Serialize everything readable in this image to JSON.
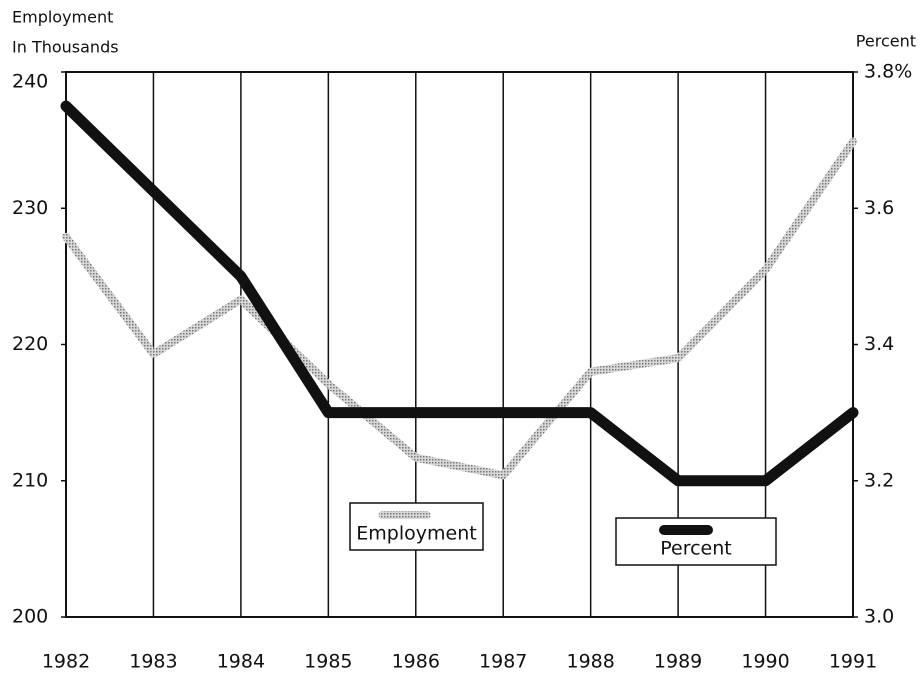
{
  "chart_data": {
    "type": "line",
    "y_label": [
      "Employment",
      "In Thousands"
    ],
    "y2_label": "Percent",
    "categories": [
      "1982",
      "1983",
      "1984",
      "1985",
      "1986",
      "1987",
      "1988",
      "1989",
      "1990",
      "1991"
    ],
    "series": [
      {
        "name": "Employment",
        "color": "#a8a8a8",
        "values": [
          227.9,
          219.3,
          223.3,
          217.1,
          211.7,
          210.4,
          218,
          219,
          225.5,
          234.9
        ]
      },
      {
        "name": "Percent",
        "color": "#111111",
        "axis": "y2",
        "values": [
          3.75,
          3.625,
          3.5,
          3.3,
          3.3,
          3.3,
          3.3,
          3.2,
          3.2,
          3.3
        ]
      }
    ],
    "ylim": [
      200,
      240
    ],
    "yticks": [
      200,
      210,
      220,
      230,
      240
    ],
    "y2lim": [
      3.0,
      3.8
    ],
    "y2ticks": [
      {
        "value": 3.0,
        "label": "3.0"
      },
      {
        "value": 3.2,
        "label": "3.2"
      },
      3.4,
      3.6,
      {
        "value": 3.8,
        "label": "3.8%"
      }
    ],
    "grid": "x"
  }
}
